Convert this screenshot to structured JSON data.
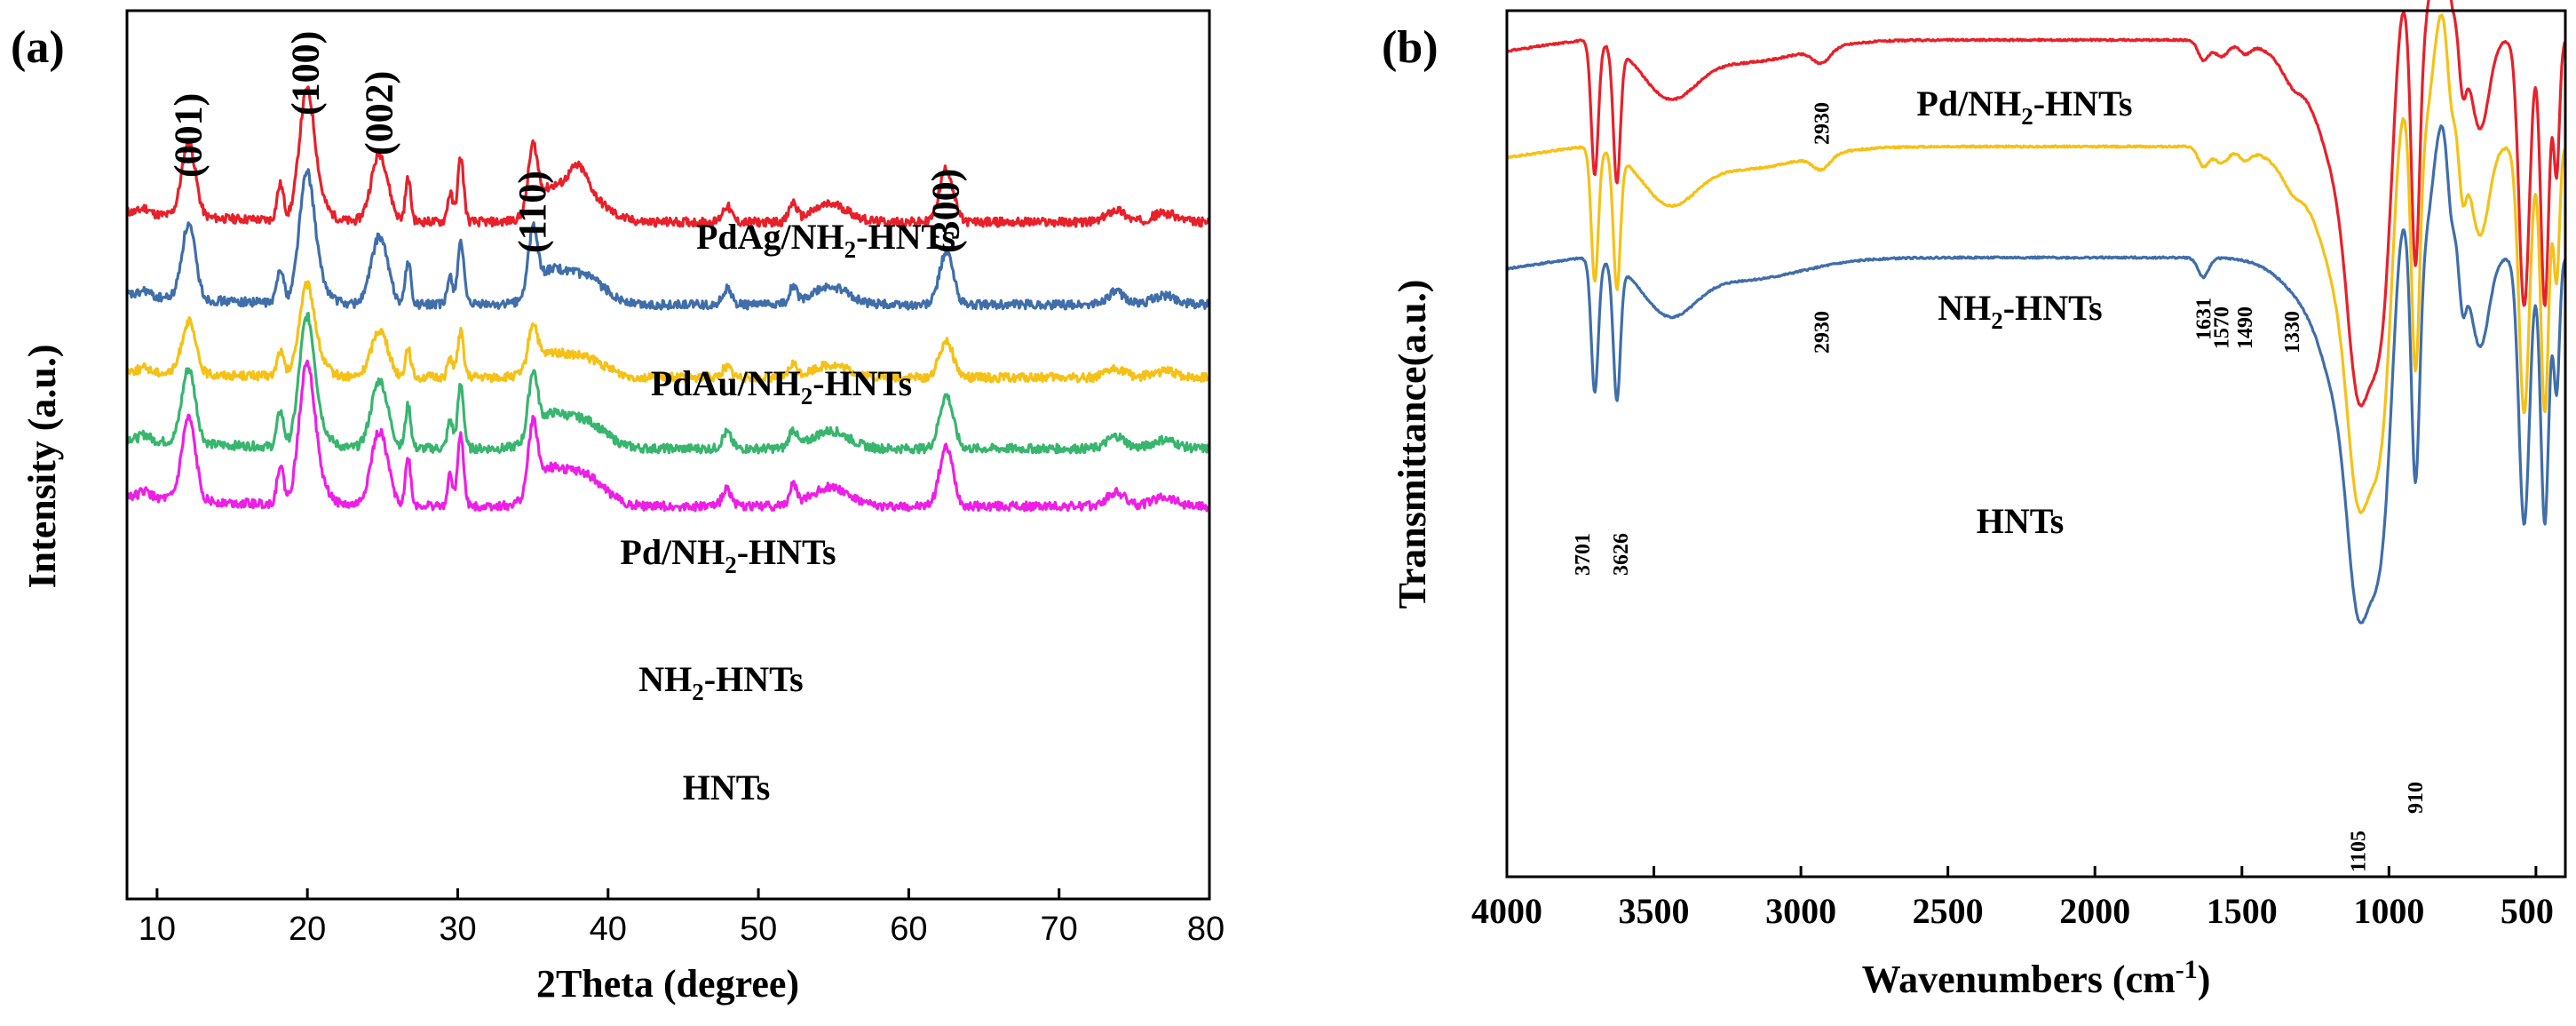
{
  "chart_data": [
    {
      "type": "line",
      "panel_label": "(a)",
      "title": "",
      "xlabel": "2Theta (degree)",
      "ylabel": "Intensity (a.u.)",
      "xlim": [
        8,
        80
      ],
      "xticks": [
        10,
        20,
        30,
        40,
        50,
        60,
        70,
        80
      ],
      "yticks_shown": false,
      "peak_labels": [
        {
          "label": "(001)",
          "x": 12.1
        },
        {
          "label": "(100)",
          "x": 19.9
        },
        {
          "label": "(002)",
          "x": 24.8
        },
        {
          "label": "(110)",
          "x": 35.0
        },
        {
          "label": "(300)",
          "x": 62.5
        }
      ],
      "peaks_2theta": [
        {
          "x": 9.2,
          "h": 3,
          "w": 0.3
        },
        {
          "x": 12.1,
          "h": 42,
          "w": 0.45
        },
        {
          "x": 18.2,
          "h": 20,
          "w": 0.22
        },
        {
          "x": 19.95,
          "h": 68,
          "w": 0.5
        },
        {
          "x": 20.7,
          "h": 10,
          "w": 0.7
        },
        {
          "x": 24.8,
          "h": 38,
          "w": 0.55
        },
        {
          "x": 26.7,
          "h": 24,
          "w": 0.18
        },
        {
          "x": 29.5,
          "h": 16,
          "w": 0.18
        },
        {
          "x": 30.2,
          "h": 36,
          "w": 0.2
        },
        {
          "x": 35.0,
          "h": 34,
          "w": 0.3
        },
        {
          "x": 36.0,
          "h": 15,
          "w": 1.0
        },
        {
          "x": 38.3,
          "h": 16,
          "w": 1.4
        },
        {
          "x": 47.9,
          "h": 9,
          "w": 0.3
        },
        {
          "x": 52.3,
          "h": 10,
          "w": 0.25
        },
        {
          "x": 54.8,
          "h": 10,
          "w": 1.2
        },
        {
          "x": 62.5,
          "h": 30,
          "w": 0.45
        },
        {
          "x": 73.8,
          "h": 7,
          "w": 0.6
        },
        {
          "x": 77.0,
          "h": 5,
          "w": 0.8
        }
      ],
      "series": [
        {
          "name": "PdAg/NH2-HNTs",
          "label_main": "PdAg/NH",
          "label_sub": "2",
          "label_tail": "-HNTs",
          "color": "#e8202a",
          "scale": 1.0,
          "offset": 4,
          "extra_peaks": [
            {
              "x": 38.0,
              "h": 14,
              "w": 0.6
            }
          ]
        },
        {
          "name": "PdAu/NH2-HNTs",
          "label_main": "PdAu/NH",
          "label_sub": "2",
          "label_tail": "-HNTs",
          "color": "#3f6eaa",
          "scale": 1.0,
          "offset": 3,
          "extra_peaks": []
        },
        {
          "name": "Pd/NH2-HNTs",
          "label_main": "Pd/NH",
          "label_sub": "2",
          "label_tail": "-HNTs",
          "color": "#f5c116",
          "scale": 0.7,
          "offset": 2,
          "extra_peaks": []
        },
        {
          "name": "NH2-HNTs",
          "label_main": "NH",
          "label_sub": "2",
          "label_tail": "-HNTs",
          "color": "#38b56e",
          "scale": 1.0,
          "offset": 1,
          "extra_peaks": []
        },
        {
          "name": "HNTs",
          "label_main": "HNTs",
          "label_sub": "",
          "label_tail": "",
          "color": "#ee1ee6",
          "scale": 1.1,
          "offset": 0,
          "extra_peaks": []
        }
      ]
    },
    {
      "type": "line",
      "panel_label": "(b)",
      "title": "",
      "xlabel_main": "Wavenumbers (cm",
      "xlabel_sup": "-1",
      "xlabel_tail": ")",
      "ylabel": "Transmittance(a.u.)",
      "xlim": [
        4000,
        400
      ],
      "xticks": [
        4000,
        3500,
        3000,
        2500,
        2000,
        1500,
        1000,
        500
      ],
      "yticks_shown": false,
      "series": [
        {
          "name": "Pd/NH2-HNTs",
          "label_main": "Pd/NH",
          "label_sub": "2",
          "label_tail": "-HNTs",
          "color": "#e8202a",
          "offset": 2
        },
        {
          "name": "NH2-HNTs",
          "label_main": "NH",
          "label_sub": "2",
          "label_tail": "-HNTs",
          "color": "#f5c116",
          "offset": 1
        },
        {
          "name": "HNTs",
          "label_main": "HNTs",
          "label_sub": "",
          "label_tail": "",
          "color": "#3f6eaa",
          "offset": 0
        }
      ],
      "annotations": [
        {
          "text": "2930",
          "series": "Pd/NH2-HNTs",
          "x": 2930
        },
        {
          "text": "2930",
          "series": "NH2-HNTs",
          "x": 2930
        },
        {
          "text": "1570",
          "series": "NH2-HNTs",
          "x": 1570
        },
        {
          "text": "1490",
          "series": "NH2-HNTs",
          "x": 1490
        },
        {
          "text": "1330",
          "series": "NH2-HNTs",
          "x": 1330
        },
        {
          "text": "1631",
          "series": "HNTs",
          "x": 1631
        },
        {
          "text": "3701",
          "series": "HNTs",
          "x": 3701
        },
        {
          "text": "3626",
          "series": "HNTs",
          "x": 3626
        },
        {
          "text": "1105",
          "series": "HNTs",
          "x": 1105
        },
        {
          "text": "910",
          "series": "HNTs",
          "x": 910
        }
      ]
    }
  ]
}
